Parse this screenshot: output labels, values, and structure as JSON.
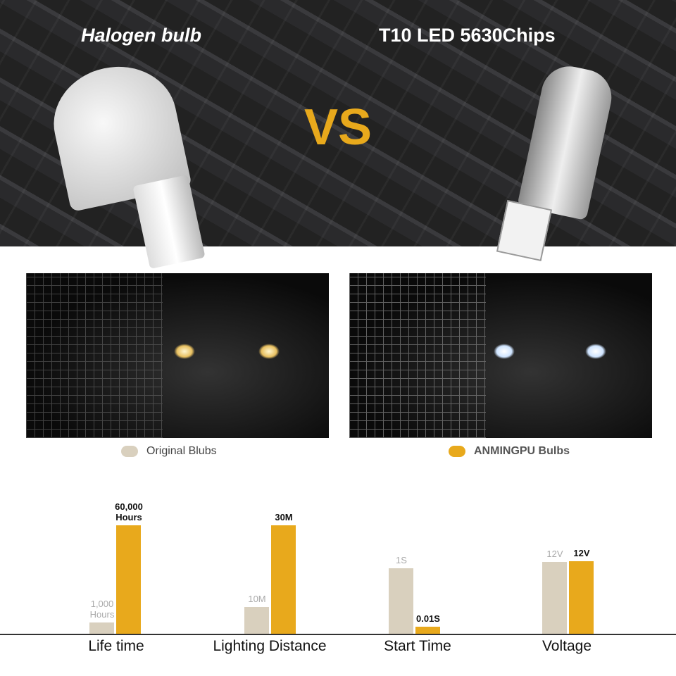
{
  "header": {
    "left_title": "Halogen bulb",
    "right_title": "T10 LED 5630Chips",
    "vs": "VS"
  },
  "legend": [
    {
      "label": "Original Blubs",
      "color": "#d9d0be"
    },
    {
      "label": "ANMINGPU Bulbs",
      "color": "#e8a91c"
    }
  ],
  "chart_data": {
    "type": "bar",
    "categories": [
      "Life time",
      "Lighting Distance",
      "Start Time",
      "Voltage"
    ],
    "series": [
      {
        "name": "Original Blubs",
        "color": "#d9d0be",
        "labels": [
          "1,000 Hours",
          "10M",
          "1S",
          "12V"
        ]
      },
      {
        "name": "ANMINGPU Bulbs",
        "color": "#e8a91c",
        "labels": [
          "60,000 Hours",
          "30M",
          "0.01S",
          "12V"
        ]
      }
    ]
  }
}
